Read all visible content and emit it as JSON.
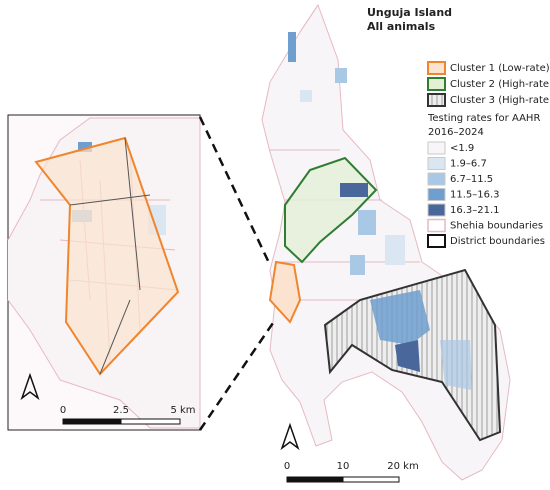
{
  "title": [
    "Unguja Island",
    "All animals"
  ],
  "legend": {
    "clusters": [
      {
        "label": "Cluster 1 (Low-rate)",
        "color": "#f0852d",
        "fill": "#fbe3cf"
      },
      {
        "label": "Cluster 2 (High-rate)",
        "color": "#2e7d32",
        "fill": "#e3f0d6"
      },
      {
        "label": "Cluster 3 (High-rate)",
        "color": "#333333",
        "fill": "#e8e8e8"
      }
    ],
    "rates_title": [
      "Testing rates for AAHR",
      "2016–2024"
    ],
    "classes": [
      {
        "label": "<1.9",
        "color": "#f7f5f7"
      },
      {
        "label": "1.9–6.7",
        "color": "#dbe6f3"
      },
      {
        "label": "6.7–11.5",
        "color": "#a9c8e5"
      },
      {
        "label": "11.5–16.3",
        "color": "#6f9fcf"
      },
      {
        "label": "16.3–21.1",
        "color": "#4a679c"
      }
    ],
    "boundaries": [
      {
        "label": "Shehia boundaries",
        "color": "#e6b9c3"
      },
      {
        "label": "District boundaries",
        "color": "#111111"
      }
    ]
  },
  "inset_scale": [
    "0",
    "2.5",
    "5 km"
  ],
  "main_scale": [
    "0",
    "10",
    "20 km"
  ]
}
